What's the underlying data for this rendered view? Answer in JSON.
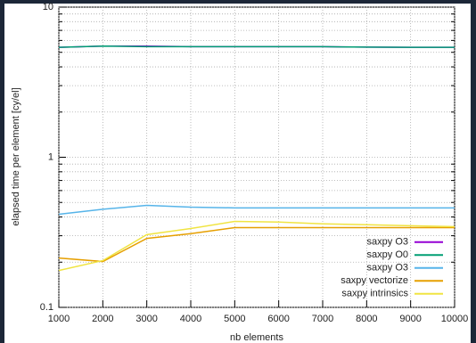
{
  "chart_data": {
    "type": "line",
    "ylabel": "elapsed time per element [cy/el]",
    "xlabel": "nb elements",
    "x": [
      1000,
      2000,
      3000,
      4000,
      5000,
      6000,
      7000,
      8000,
      9000,
      10000
    ],
    "xlim": [
      1000,
      10000
    ],
    "xticks": [
      1000,
      2000,
      3000,
      4000,
      5000,
      6000,
      7000,
      8000,
      9000,
      10000
    ],
    "ylim": [
      0.1,
      10
    ],
    "yticks": [
      0.1,
      1,
      10
    ],
    "log_y": true,
    "grid": true,
    "legend": "bottom-right",
    "series": [
      {
        "name": "saxpy O3",
        "color": "#9400d3",
        "values": [
          5.4,
          5.5,
          5.5,
          5.45,
          5.45,
          5.45,
          5.45,
          5.42,
          5.4,
          5.4
        ]
      },
      {
        "name": "saxpy O0",
        "color": "#009e73",
        "values": [
          5.4,
          5.5,
          5.45,
          5.45,
          5.45,
          5.45,
          5.45,
          5.42,
          5.4,
          5.4
        ]
      },
      {
        "name": "saxpy O3",
        "color": "#56b4e9",
        "values": [
          0.417,
          0.45,
          0.478,
          0.465,
          0.46,
          0.46,
          0.46,
          0.46,
          0.46,
          0.46
        ]
      },
      {
        "name": "saxpy vectorize",
        "color": "#e69f00",
        "values": [
          0.213,
          0.202,
          0.288,
          0.31,
          0.34,
          0.34,
          0.34,
          0.34,
          0.34,
          0.34
        ]
      },
      {
        "name": "saxpy intrinsics",
        "color": "#f0e442",
        "values": [
          0.176,
          0.205,
          0.305,
          0.335,
          0.374,
          0.37,
          0.36,
          0.355,
          0.35,
          0.345
        ]
      }
    ]
  }
}
